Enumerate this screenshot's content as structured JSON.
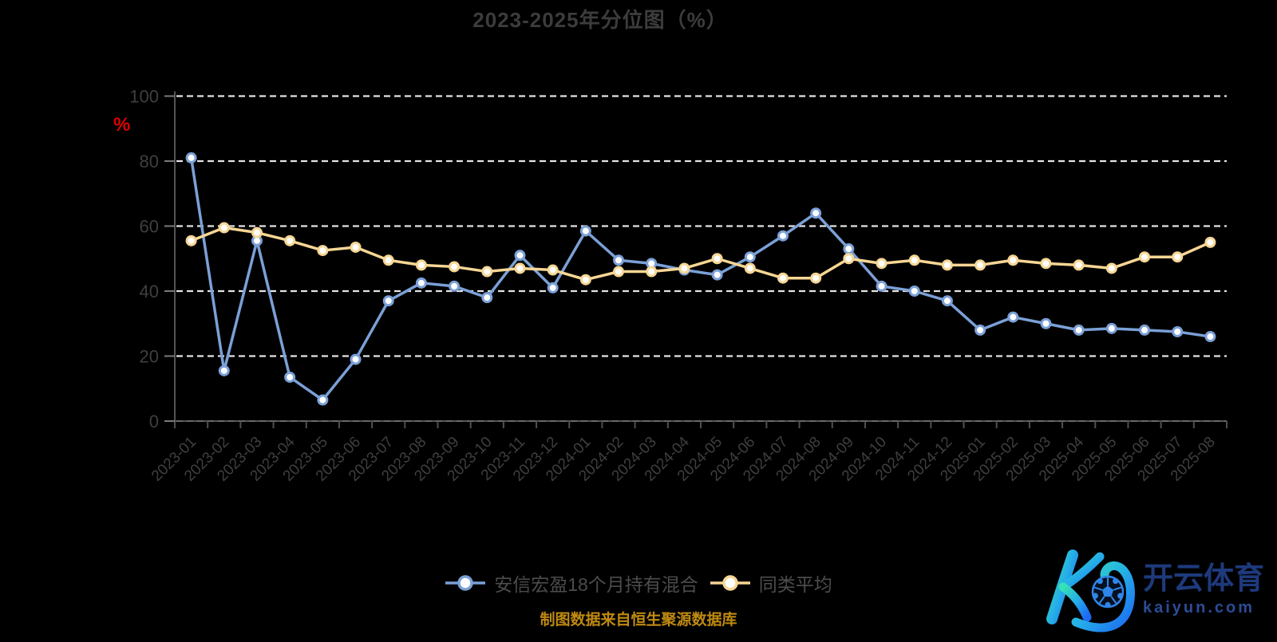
{
  "title": "2023-2025年分位图（%）",
  "source_note": "制图数据来自恒生聚源数据库",
  "ylabel": "%",
  "colors": {
    "background": "#000000",
    "title": "#3c3c3c",
    "axis_label": "#3f3f3f",
    "grid": "#e3e3e3",
    "axis_line": "#555555",
    "axis_dash_overlay": "#6a6a6a",
    "tick": "#4f4f4f",
    "y_tick": "#7a7a7a",
    "ylabel_red": "#dd0000",
    "source_text": "#bf8a10",
    "legend_text": "#4c4c4c",
    "series_fund": "#7ba0d7",
    "series_avg": "#f6d694",
    "marker_fill": "#ffffff"
  },
  "legend": [
    {
      "label": "安信宏盈18个月持有混合",
      "color": "#7ba0d7"
    },
    {
      "label": "同类平均",
      "color": "#f6d694"
    }
  ],
  "watermark": {
    "brand_cn": "开云体育",
    "brand_url": "kaiyun.com",
    "gradient_start": "#35e3b4",
    "gradient_end": "#1c69f3",
    "brand_text_color": "#1e3a7d",
    "brand_url_color": "#2b4c96"
  },
  "chart_data": {
    "type": "line",
    "title": "2023-2025年分位图（%）",
    "xlabel": "",
    "ylabel": "%",
    "ylim": [
      0,
      100
    ],
    "yticks": [
      0,
      20,
      40,
      60,
      80,
      100
    ],
    "grid": "horizontal-dashed",
    "legend_position": "bottom-center",
    "categories": [
      "2023-01",
      "2023-02",
      "2023-03",
      "2023-04",
      "2023-05",
      "2023-06",
      "2023-07",
      "2023-08",
      "2023-09",
      "2023-10",
      "2023-11",
      "2023-12",
      "2024-01",
      "2024-02",
      "2024-03",
      "2024-04",
      "2024-05",
      "2024-06",
      "2024-07",
      "2024-08",
      "2024-09",
      "2024-10",
      "2024-11",
      "2024-12",
      "2025-01",
      "2025-02",
      "2025-03",
      "2025-04",
      "2025-05",
      "2025-06",
      "2025-07",
      "2025-08"
    ],
    "series": [
      {
        "name": "安信宏盈18个月持有混合",
        "color": "#7ba0d7",
        "values": [
          81,
          15.5,
          55.5,
          13.5,
          6.5,
          19,
          37,
          42.5,
          41.5,
          38,
          51,
          41,
          58.5,
          49.5,
          48.5,
          46.5,
          45,
          50.5,
          57,
          64,
          53,
          41.5,
          40,
          37,
          28,
          32,
          30,
          28,
          28.5,
          28,
          27.5,
          26
        ]
      },
      {
        "name": "同类平均",
        "color": "#f6d694",
        "values": [
          55.5,
          59.5,
          58,
          55.5,
          52.5,
          53.5,
          49.5,
          48,
          47.5,
          46,
          47,
          46.5,
          43.5,
          46,
          46,
          47,
          50,
          47,
          44,
          44,
          50,
          48.5,
          49.5,
          48,
          48,
          49.5,
          48.5,
          48,
          47,
          50.5,
          50.5,
          55
        ]
      }
    ]
  }
}
